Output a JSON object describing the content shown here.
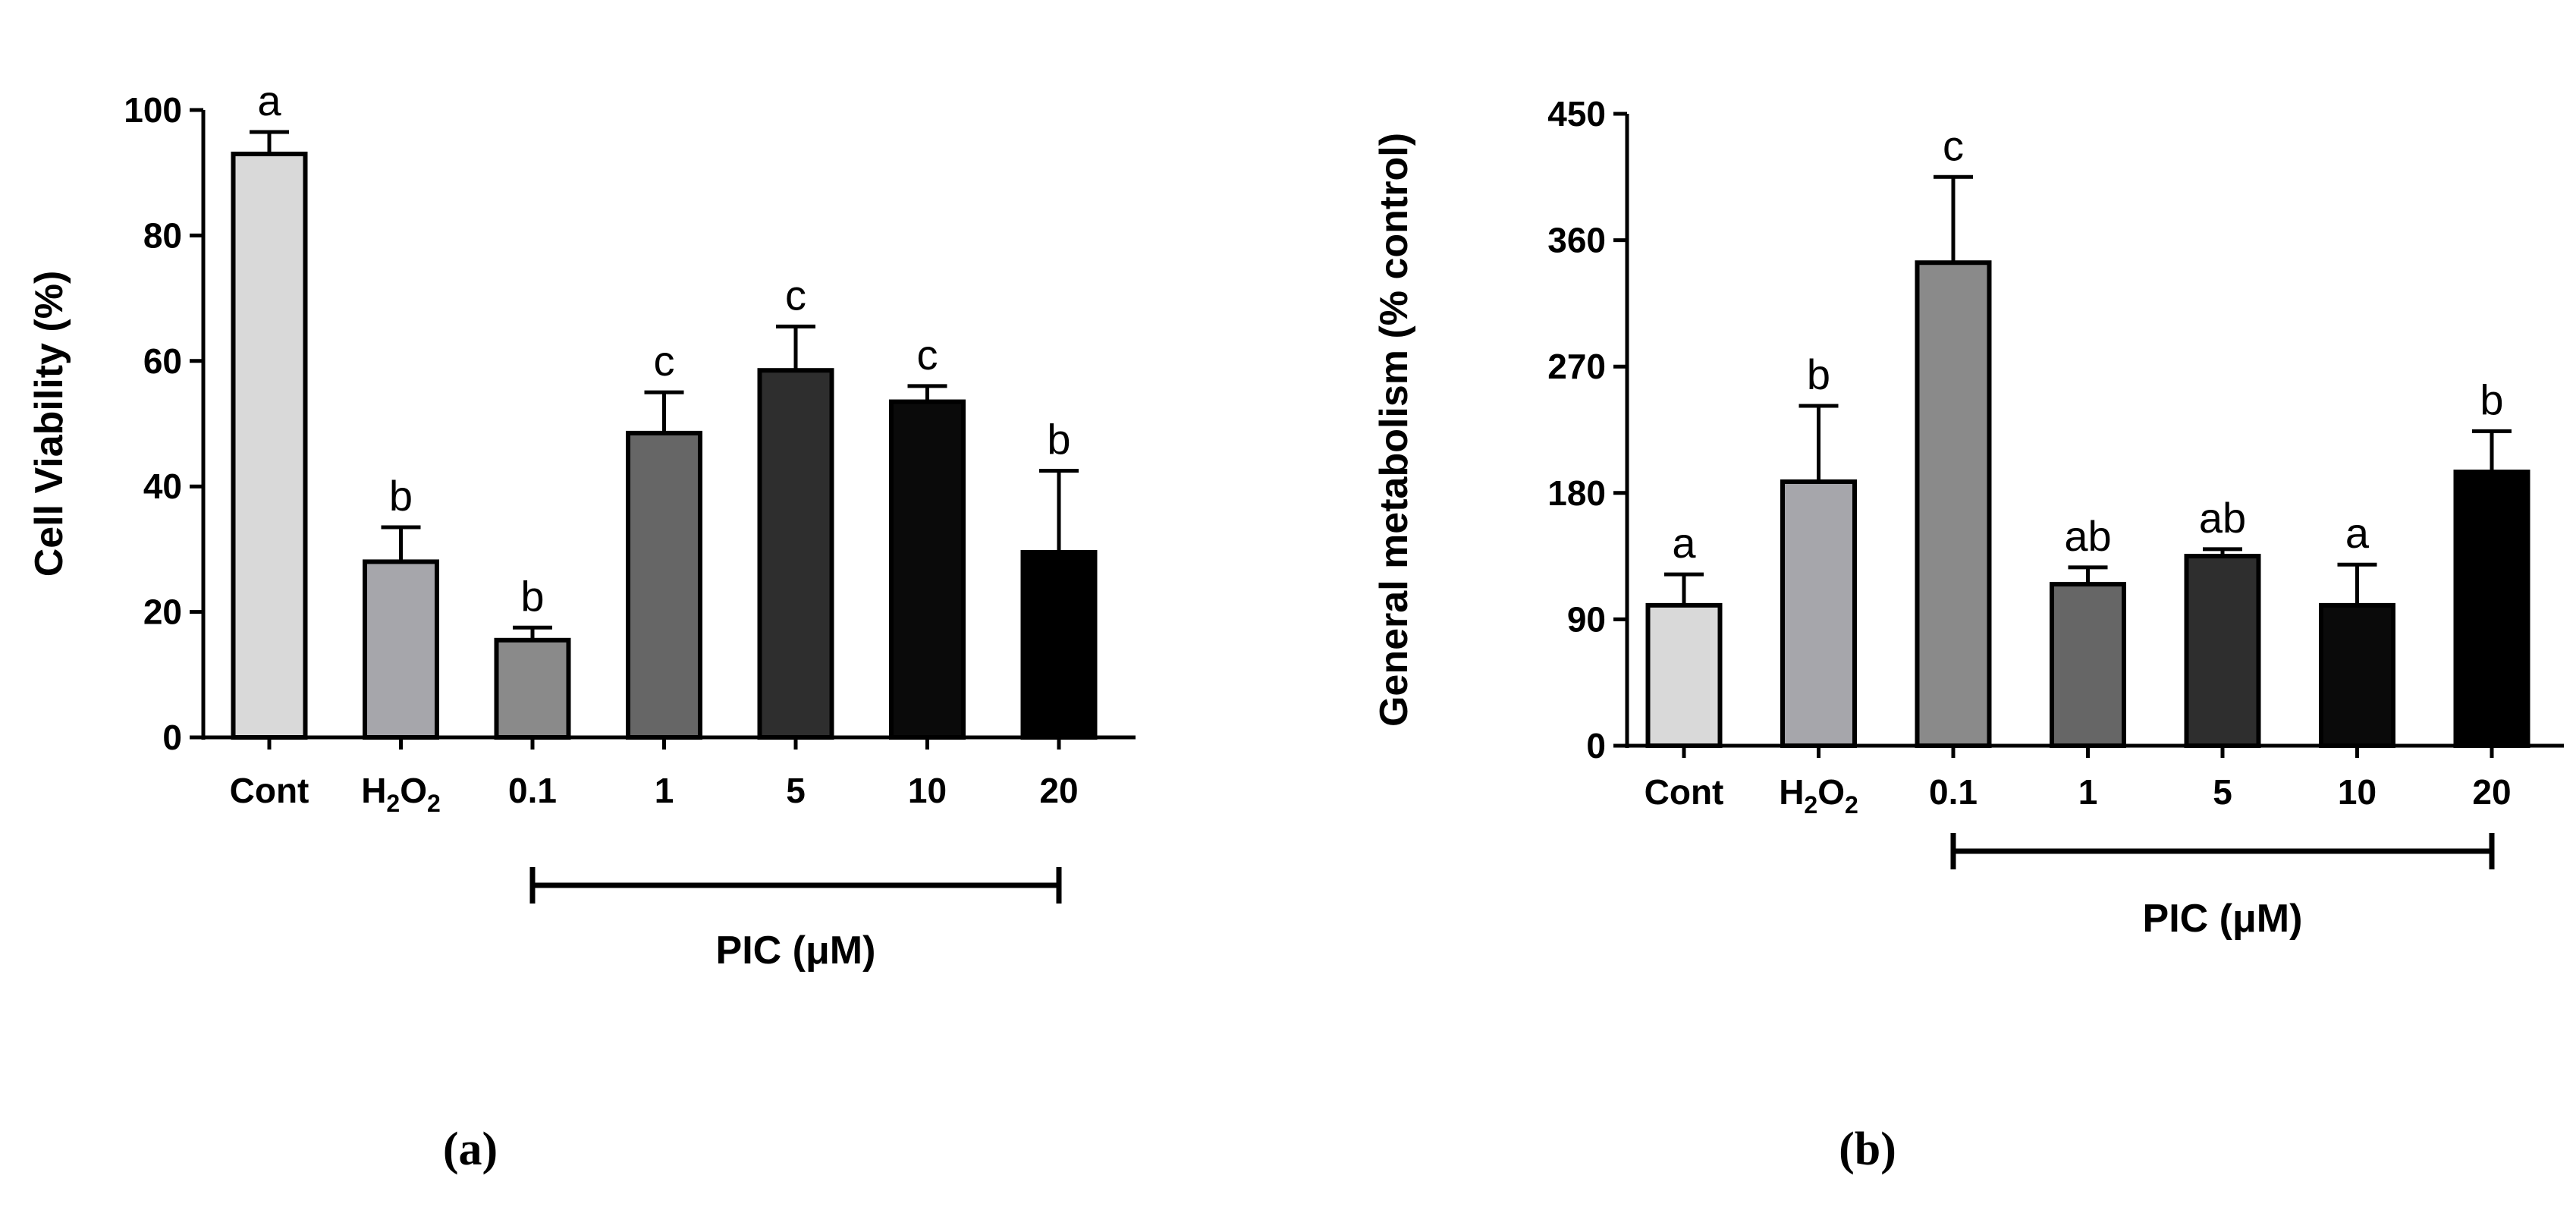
{
  "panel_labels": [
    "(a)",
    "(b)"
  ],
  "chart_data": [
    {
      "type": "bar",
      "panel": "(a)",
      "title": "",
      "xlabel": "",
      "ylabel": "Cell Viability (%)",
      "ylim": [
        0,
        100
      ],
      "yticks": [
        0,
        20,
        40,
        60,
        80,
        100
      ],
      "grid": false,
      "categories": [
        "Cont",
        "H2O2",
        "0.1",
        "1",
        "5",
        "10",
        "20"
      ],
      "category_display": [
        {
          "main": "Cont",
          "sub": "",
          "tail": ""
        },
        {
          "main": "H",
          "sub": "2",
          "tail": "O",
          "sub2": "2"
        },
        {
          "main": "0.1",
          "sub": "",
          "tail": ""
        },
        {
          "main": "1",
          "sub": "",
          "tail": ""
        },
        {
          "main": "5",
          "sub": "",
          "tail": ""
        },
        {
          "main": "10",
          "sub": "",
          "tail": ""
        },
        {
          "main": "20",
          "sub": "",
          "tail": ""
        }
      ],
      "values": [
        93,
        28,
        15.5,
        48.5,
        58.5,
        53.5,
        29.5
      ],
      "errors": [
        3.5,
        5.5,
        2,
        6.5,
        7,
        2.5,
        13
      ],
      "significance_letters": [
        "a",
        "b",
        "b",
        "c",
        "c",
        "c",
        "b"
      ],
      "bar_colors": [
        "#d9d9d9",
        "#a6a6ab",
        "#8a8a8a",
        "#666666",
        "#2e2e2e",
        "#0a0a0a",
        "#000000"
      ],
      "group_bracket": {
        "from_index": 2,
        "to_index": 6,
        "label": "PIC (μM)"
      }
    },
    {
      "type": "bar",
      "panel": "(b)",
      "title": "",
      "xlabel": "",
      "ylabel": "General metabolism (% control)",
      "ylim": [
        0,
        450
      ],
      "yticks": [
        0,
        90,
        180,
        270,
        360,
        450
      ],
      "grid": false,
      "categories": [
        "Cont",
        "H2O2",
        "0.1",
        "1",
        "5",
        "10",
        "20"
      ],
      "category_display": [
        {
          "main": "Cont",
          "sub": "",
          "tail": ""
        },
        {
          "main": "H",
          "sub": "2",
          "tail": "O",
          "sub2": "2"
        },
        {
          "main": "0.1",
          "sub": "",
          "tail": ""
        },
        {
          "main": "1",
          "sub": "",
          "tail": ""
        },
        {
          "main": "5",
          "sub": "",
          "tail": ""
        },
        {
          "main": "10",
          "sub": "",
          "tail": ""
        },
        {
          "main": "20",
          "sub": "",
          "tail": ""
        }
      ],
      "values": [
        100,
        188,
        344,
        115,
        135,
        100,
        195
      ],
      "errors": [
        22,
        54,
        61,
        12,
        5,
        29,
        29
      ],
      "significance_letters": [
        "a",
        "b",
        "c",
        "ab",
        "ab",
        "a",
        "b"
      ],
      "bar_colors": [
        "#d9d9d9",
        "#a6a6ab",
        "#8a8a8a",
        "#666666",
        "#2e2e2e",
        "#0a0a0a",
        "#000000"
      ],
      "group_bracket": {
        "from_index": 2,
        "to_index": 6,
        "label": "PIC (μM)"
      }
    }
  ]
}
